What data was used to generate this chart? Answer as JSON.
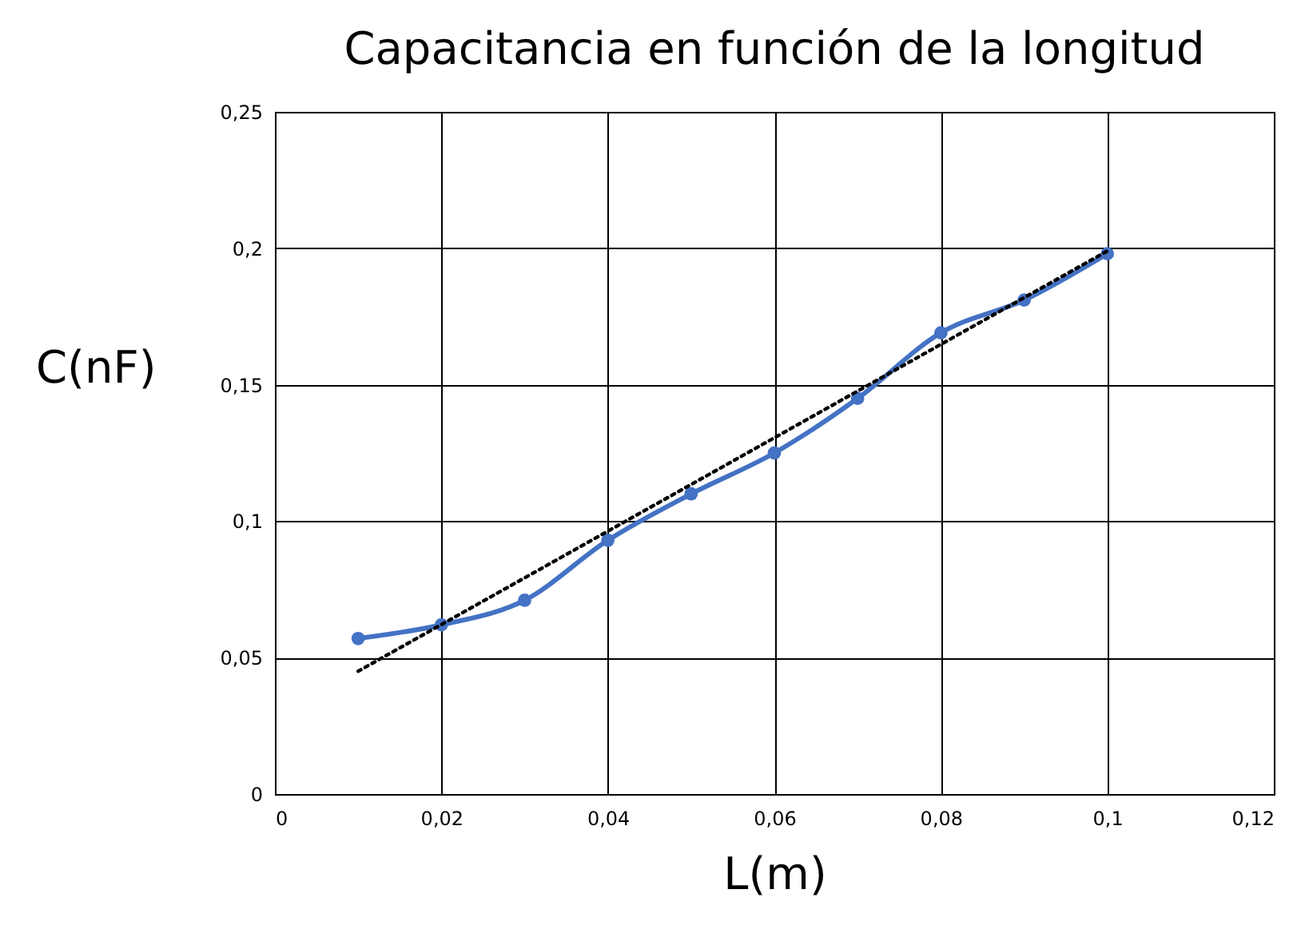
{
  "chart_data": {
    "type": "line",
    "title": "Capacitancia en función de la longitud",
    "xlabel": "L(m)",
    "ylabel": "C(nF)",
    "x": [
      0.01,
      0.02,
      0.03,
      0.04,
      0.05,
      0.06,
      0.07,
      0.08,
      0.09,
      0.1
    ],
    "series": [
      {
        "color": "#4472c4",
        "marker": "circle",
        "line_style": "solid",
        "values": [
          0.057,
          0.062,
          0.071,
          0.093,
          0.11,
          0.125,
          0.145,
          0.169,
          0.181,
          0.198
        ]
      },
      {
        "color": "#000000",
        "marker": "none",
        "line_style": "dotted",
        "x": [
          0.01,
          0.1
        ],
        "values": [
          0.045,
          0.199
        ]
      }
    ],
    "xlim": [
      0,
      0.12
    ],
    "ylim": [
      0,
      0.25
    ],
    "xticks": [
      0,
      {
        "value": 0.02,
        "label": "0,02"
      },
      {
        "value": 0.04,
        "label": "0,04"
      },
      {
        "value": 0.06,
        "label": "0,06"
      },
      {
        "value": 0.08,
        "label": "0,08"
      },
      {
        "value": 0.1,
        "label": "0,1"
      },
      {
        "value": 0.12,
        "label": "0,12"
      }
    ],
    "yticks": [
      0,
      {
        "value": 0.05,
        "label": "0,05"
      },
      {
        "value": 0.1,
        "label": "0,1"
      },
      {
        "value": 0.15,
        "label": "0,15"
      },
      {
        "value": 0.2,
        "label": "0,2"
      },
      {
        "value": 0.25,
        "label": "0,25"
      }
    ],
    "grid": true
  }
}
